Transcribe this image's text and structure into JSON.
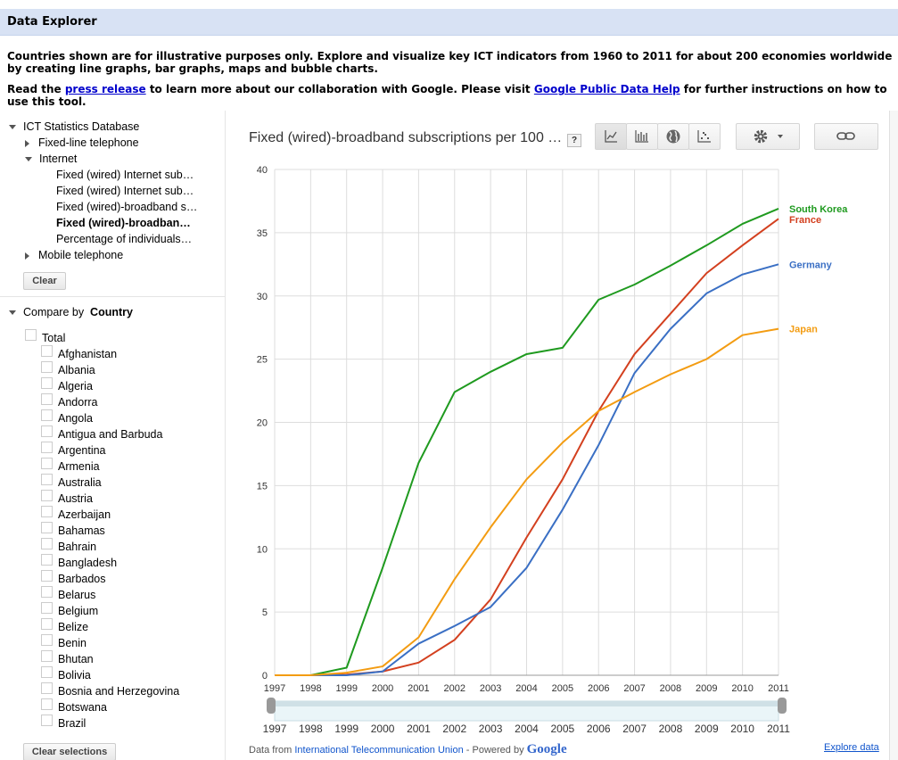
{
  "header": {
    "title": "Data Explorer"
  },
  "intro": {
    "line1": "Countries shown are for illustrative purposes only. Explore and visualize key ICT indicators from 1960 to 2011 for about 200 economies worldwide by creating line graphs, bar graphs, maps and bubble charts.",
    "line2_prefix": "Read the ",
    "press_release_link": "press release",
    "line2_middle": " to learn more about our collaboration with Google. Please visit ",
    "help_link": "Google Public Data Help",
    "line2_suffix": " for further instructions on how to use this tool."
  },
  "tree": {
    "root": "ICT Statistics Database",
    "fixed_line": "Fixed-line telephone",
    "internet": "Internet",
    "internet_items": [
      "Fixed (wired) Internet sub…",
      "Fixed (wired) Internet sub…",
      "Fixed (wired)-broadband s…",
      "Fixed (wired)-broadban…",
      "Percentage of individuals…"
    ],
    "mobile": "Mobile telephone",
    "clear_button": "Clear"
  },
  "compare": {
    "label": "Compare by",
    "value": "Country",
    "total": "Total",
    "countries": [
      "Afghanistan",
      "Albania",
      "Algeria",
      "Andorra",
      "Angola",
      "Antigua and Barbuda",
      "Argentina",
      "Armenia",
      "Australia",
      "Austria",
      "Azerbaijan",
      "Bahamas",
      "Bahrain",
      "Bangladesh",
      "Barbados",
      "Belarus",
      "Belgium",
      "Belize",
      "Benin",
      "Bhutan",
      "Bolivia",
      "Bosnia and Herzegovina",
      "Botswana",
      "Brazil"
    ],
    "clear_selections": "Clear selections"
  },
  "toolbar": {
    "icons": [
      "line-chart-icon",
      "bar-chart-icon",
      "map-icon",
      "bubble-chart-icon"
    ],
    "settings_icon": "gear-icon",
    "link_icon": "link-icon"
  },
  "chart_data": {
    "type": "line",
    "title": "Fixed (wired)-broadband subscriptions per 100 …",
    "help_mark": "?",
    "x": [
      1997,
      1998,
      1999,
      2000,
      2001,
      2002,
      2003,
      2004,
      2005,
      2006,
      2007,
      2008,
      2009,
      2010,
      2011
    ],
    "ylim": [
      0,
      40
    ],
    "yticks": [
      0,
      5,
      10,
      15,
      20,
      25,
      30,
      35,
      40
    ],
    "grid": true,
    "series": [
      {
        "name": "South Korea",
        "color": "#1f9a1f",
        "values": [
          0,
          0,
          0.6,
          8.5,
          16.8,
          22.4,
          24,
          25.4,
          25.9,
          29.7,
          30.9,
          32.4,
          34,
          35.7,
          36.9
        ]
      },
      {
        "name": "France",
        "color": "#d3401f",
        "values": [
          0,
          0,
          0.05,
          0.3,
          1,
          2.8,
          6,
          10.9,
          15.5,
          20.9,
          25.4,
          28.6,
          31.8,
          34,
          36.1
        ]
      },
      {
        "name": "Germany",
        "color": "#3a6fc4",
        "values": [
          0,
          0,
          0,
          0.3,
          2.5,
          3.9,
          5.4,
          8.5,
          13.1,
          18.2,
          23.9,
          27.4,
          30.2,
          31.7,
          32.5
        ]
      },
      {
        "name": "Japan",
        "color": "#f39c12",
        "values": [
          0,
          0,
          0.2,
          0.7,
          3,
          7.6,
          11.7,
          15.5,
          18.4,
          20.9,
          22.4,
          23.8,
          25,
          26.9,
          27.4
        ]
      }
    ],
    "timeline_labels": [
      "1997",
      "1998",
      "1999",
      "2000",
      "2001",
      "2002",
      "2003",
      "2004",
      "2005",
      "2006",
      "2007",
      "2008",
      "2009",
      "2010",
      "2011"
    ]
  },
  "footer": {
    "prefix": "Data from ",
    "source_link": "International Telecommunication Union",
    "powered": " - Powered by ",
    "google": "Google",
    "explore": "Explore data"
  }
}
